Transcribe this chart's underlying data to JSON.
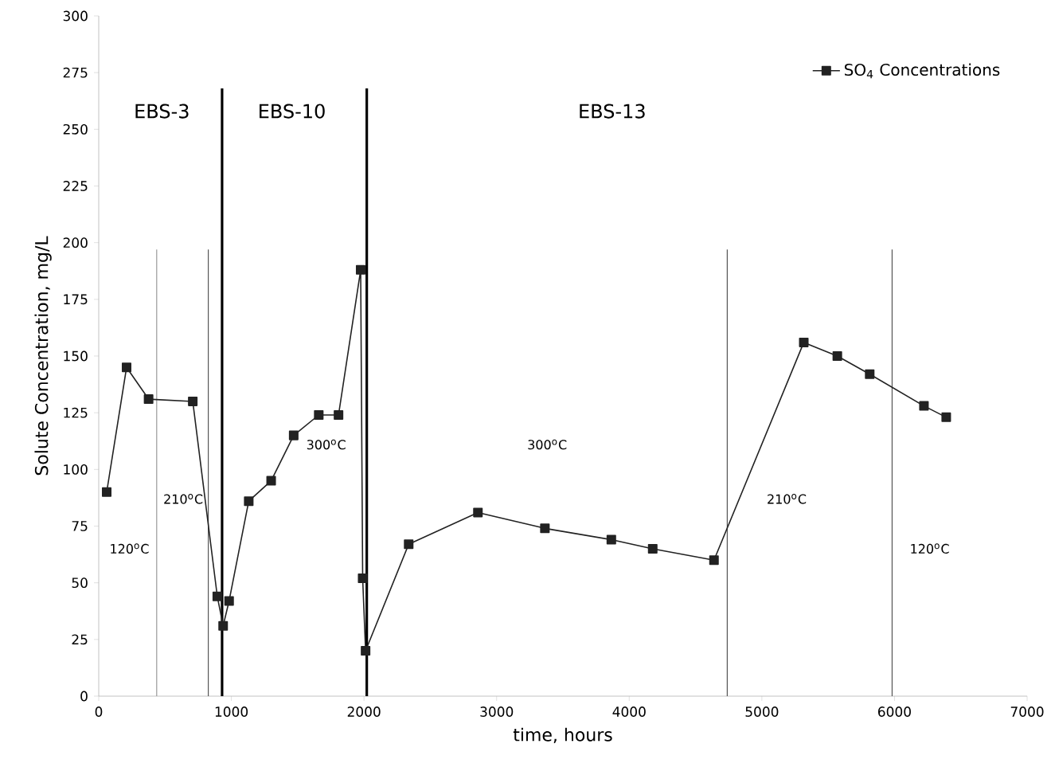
{
  "chart_data": {
    "type": "line",
    "xlabel": "time, hours",
    "ylabel": "Solute Concentration, mg/L",
    "xlim": [
      0,
      7000
    ],
    "xticks": [
      0,
      1000,
      2000,
      3000,
      4000,
      5000,
      6000,
      7000
    ],
    "ylim": [
      0,
      300
    ],
    "yticks": [
      0,
      25,
      50,
      75,
      100,
      125,
      150,
      175,
      200,
      225,
      250,
      275,
      300
    ],
    "grid": false,
    "legend": "top right",
    "marker": "square",
    "line_style": "solid",
    "series": [
      {
        "name": "SO$_{4}$ Concentrations",
        "color": "#222222",
        "x": [
          60,
          210,
          376,
          709,
          894,
          938,
          983,
          1131,
          1300,
          1470,
          1659,
          1808,
          1975,
          1990,
          2012,
          2337,
          2859,
          3364,
          3865,
          4177,
          4639,
          5316,
          5569,
          5813,
          6222,
          6390
        ],
        "values": [
          90,
          145,
          131,
          130,
          44,
          31,
          42,
          86,
          95,
          115,
          124,
          124,
          188,
          52,
          20,
          67,
          81,
          74,
          69,
          65,
          60,
          156,
          150,
          142,
          128,
          123
        ]
      }
    ],
    "ref_lines": [
      {
        "axis": "x",
        "value": 437,
        "color": "#999999"
      },
      {
        "axis": "x",
        "value": 826,
        "color": "#555555"
      },
      {
        "axis": "x",
        "value": 930,
        "color": "#000000"
      },
      {
        "axis": "x",
        "value": 2021,
        "color": "#000000"
      },
      {
        "axis": "x",
        "value": 4739,
        "color": "#555555"
      },
      {
        "axis": "x",
        "value": 5982,
        "color": "#555555"
      }
    ],
    "annotations": [
      "EBS-3",
      "EBS-10",
      "EBS-13",
      "120$^{o}$C",
      "210$^{o}$C",
      "300$^{o}$C",
      "300$^{o}$C",
      "210$^{o}$C",
      "120$^{o}$C"
    ]
  }
}
